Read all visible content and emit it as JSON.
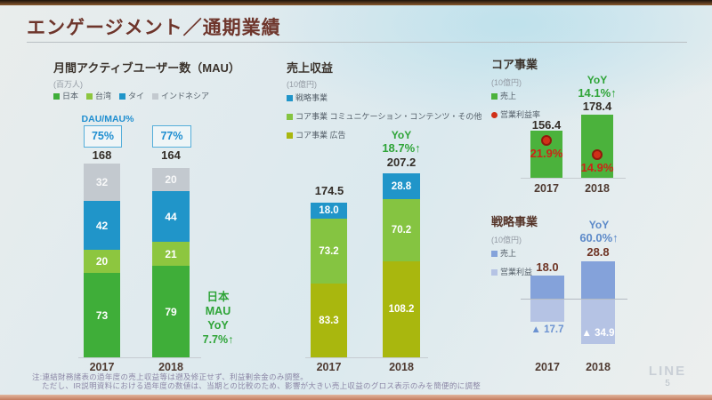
{
  "header": {
    "title": "エンゲージメント／通期業績"
  },
  "footer": {
    "note_line1": "注:連結財務諸表の過年度の売上収益等は遡及修正せず、利益剰余金のみ調整。",
    "note_line2": "ただし、IR説明資料における過年度の数値は、当期との比較のため、影響が大きい売上収益のグロス表示のみを簡便的に調整",
    "logo": "LINE",
    "page_number": "5"
  },
  "colors": {
    "title_maroon": "#6e352b",
    "green": "#3fae39",
    "light_green": "#8dc63f",
    "blue": "#2095c9",
    "gray": "#c3c9cf",
    "olive": "#a9b70e",
    "mid_green": "#85c441",
    "strategic_blue": "#84a2da",
    "strategic_light_blue": "#b5c3e4",
    "red_dot": "#d03018",
    "yoy_green": "#2ea437",
    "yoy_blue": "#5d8ac9",
    "dau_blue": "#1f8ed0"
  },
  "chart_data": [
    {
      "id": "mau",
      "type": "bar",
      "subtype": "stacked",
      "title": "月間アクティブユーザー数（MAU）",
      "unit": "(百万人)",
      "categories": [
        "2017",
        "2018"
      ],
      "series": [
        {
          "name": "日本",
          "color": "#3fae39",
          "values": [
            73,
            79
          ]
        },
        {
          "name": "台湾",
          "color": "#8dc63f",
          "values": [
            20,
            21
          ]
        },
        {
          "name": "タイ",
          "color": "#2095c9",
          "values": [
            42,
            44
          ]
        },
        {
          "name": "インドネシア",
          "color": "#c3c9cf",
          "values": [
            32,
            20
          ]
        }
      ],
      "totals": [
        "168",
        "164"
      ],
      "dau_mau": {
        "label": "DAU/MAU%",
        "values": [
          "75%",
          "77%"
        ]
      },
      "annotation": [
        "日本",
        "MAU",
        "YoY",
        "7.7%↑"
      ]
    },
    {
      "id": "revenue",
      "type": "bar",
      "subtype": "stacked",
      "title": "売上収益",
      "unit": "(10億円)",
      "categories": [
        "2017",
        "2018"
      ],
      "series": [
        {
          "name": "コア事業 広告",
          "color": "#a9b70e",
          "values": [
            "83.3",
            "108.2"
          ]
        },
        {
          "name": "コア事業 コミュニケーション・コンテンツ・その他",
          "color": "#85c441",
          "values": [
            "73.2",
            "70.2"
          ]
        },
        {
          "name": "戦略事業",
          "color": "#2095c9",
          "values": [
            "18.0",
            "28.8"
          ]
        }
      ],
      "totals": [
        "174.5",
        "207.2"
      ],
      "yoy": {
        "label": "YoY",
        "value": "18.7%↑"
      }
    },
    {
      "id": "core-business",
      "type": "bar",
      "title": "コア事業",
      "unit": "(10億円)",
      "categories": [
        "2017",
        "2018"
      ],
      "legend": [
        {
          "label": "売上",
          "marker": "square",
          "color": "#4bb23c"
        },
        {
          "label": "営業利益率",
          "marker": "dot",
          "color": "#d03018"
        }
      ],
      "revenue": [
        "156.4",
        "178.4"
      ],
      "operating_margin": [
        "21.9%",
        "14.9%"
      ],
      "yoy": {
        "label": "YoY",
        "value": "14.1%↑"
      }
    },
    {
      "id": "strategic-business",
      "type": "bar",
      "title": "戦略事業",
      "unit": "(10億円)",
      "categories": [
        "2017",
        "2018"
      ],
      "legend": [
        {
          "label": "売上",
          "marker": "square",
          "color": "#84a2da"
        },
        {
          "label": "営業利益",
          "marker": "square",
          "color": "#b5c3e4"
        }
      ],
      "revenue": [
        "18.0",
        "28.8"
      ],
      "operating_income_labels": [
        "▲ 17.7",
        "▲ 34.9"
      ],
      "operating_income_values": [
        17.7,
        34.9
      ],
      "yoy": {
        "label": "YoY",
        "value": "60.0%↑"
      }
    }
  ]
}
